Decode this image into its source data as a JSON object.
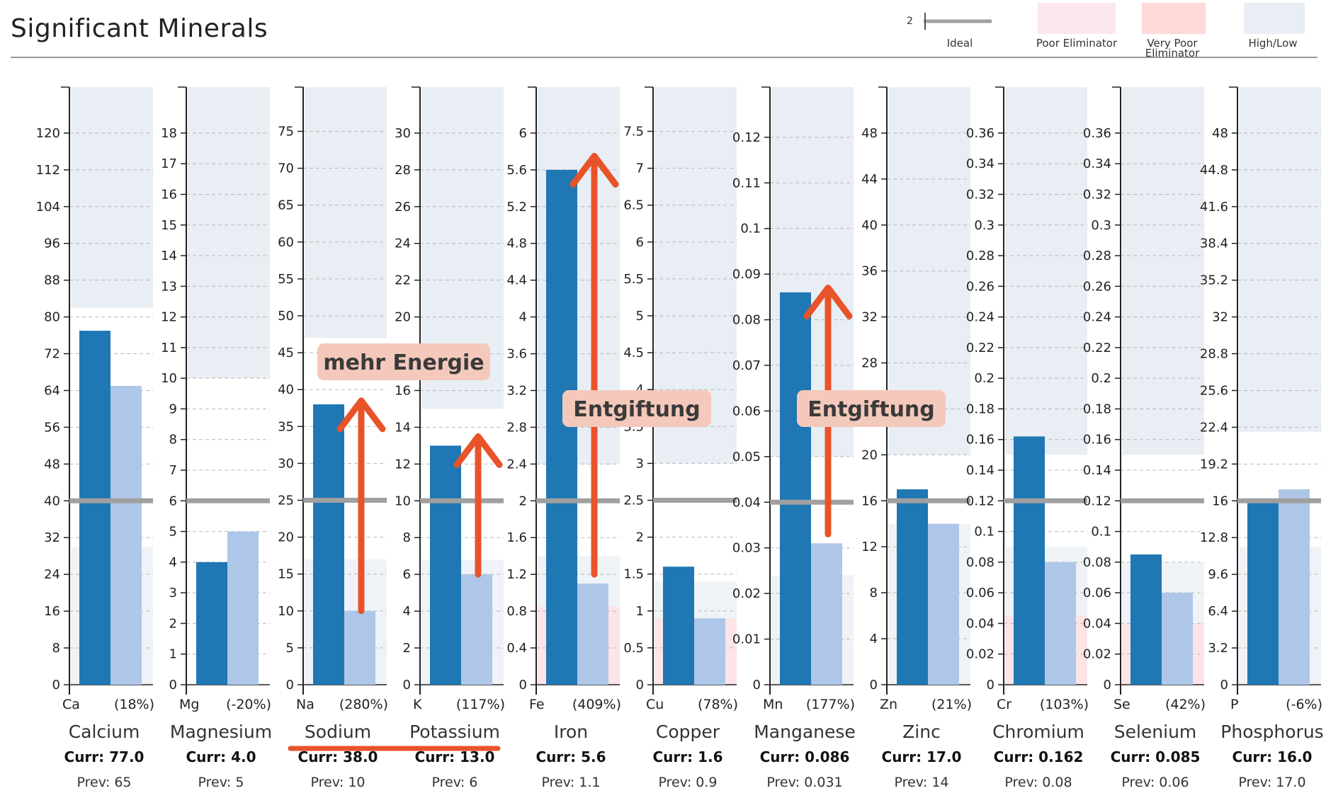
{
  "header": {
    "title": "Significant Minerals"
  },
  "legend": {
    "ideal": {
      "label": "Ideal",
      "value_label": "2"
    },
    "poor": {
      "label": "Poor Eliminator",
      "color": "#fce8ec"
    },
    "very_poor": {
      "label": "Very Poor Eliminator",
      "color": "#fdd9d9"
    },
    "high_low": {
      "label": "High/Low",
      "color": "#e8eef4"
    }
  },
  "colors": {
    "current": "#1f77b4",
    "previous": "#aec7e8",
    "ideal_line": "#a0a0a0",
    "high_low": "#e8eef4",
    "poor": "#fde4e6",
    "arrow": "#e8532a"
  },
  "chart_data": {
    "type": "bar",
    "title": "Significant Minerals",
    "series_names": [
      "Current",
      "Previous"
    ],
    "panels": [
      {
        "symbol": "Ca",
        "name": "Calcium",
        "pct": "(18%)",
        "curr": 77.0,
        "prev": 65,
        "curr_label": "Curr: 77.0",
        "prev_label": "Prev: 65",
        "ideal": 40,
        "ymax": 130,
        "ticks": [
          0,
          8,
          16,
          24,
          32,
          40,
          48,
          56,
          64,
          72,
          80,
          88,
          96,
          104,
          112,
          120
        ],
        "tick_labels": [
          "0",
          "8",
          "16",
          "24",
          "32",
          "40",
          "48",
          "56",
          "64",
          "72",
          "80",
          "88",
          "96",
          "104",
          "112",
          "120"
        ],
        "high_band": 82,
        "low_band": 30,
        "poor_band": null
      },
      {
        "symbol": "Mg",
        "name": "Magnesium",
        "pct": "(-20%)",
        "curr": 4.0,
        "prev": 5,
        "curr_label": "Curr: 4.0",
        "prev_label": "Prev: 5",
        "ideal": 6,
        "ymax": 19.5,
        "ticks": [
          0,
          1,
          2,
          3,
          4,
          5,
          6,
          7,
          8,
          9,
          10,
          11,
          12,
          13,
          14,
          15,
          16,
          17,
          18
        ],
        "tick_labels": [
          "0",
          "1",
          "2",
          "3",
          "4",
          "5",
          "6",
          "7",
          "8",
          "9",
          "10",
          "11",
          "12",
          "13",
          "14",
          "15",
          "16",
          "17",
          "18"
        ],
        "high_band": 10,
        "low_band": null,
        "poor_band": null
      },
      {
        "symbol": "Na",
        "name": "Sodium",
        "pct": "(280%)",
        "curr": 38.0,
        "prev": 10,
        "curr_label": "Curr: 38.0",
        "prev_label": "Prev: 10",
        "ideal": 25,
        "ymax": 81,
        "ticks": [
          0,
          5,
          10,
          15,
          20,
          25,
          30,
          35,
          40,
          45,
          50,
          55,
          60,
          65,
          70,
          75
        ],
        "tick_labels": [
          "0",
          "5",
          "10",
          "15",
          "20",
          "25",
          "30",
          "35",
          "40",
          "45",
          "50",
          "55",
          "60",
          "65",
          "70",
          "75"
        ],
        "high_band": 47,
        "low_band": 17,
        "poor_band": null
      },
      {
        "symbol": "K",
        "name": "Potassium",
        "pct": "(117%)",
        "curr": 13.0,
        "prev": 6,
        "curr_label": "Curr: 13.0",
        "prev_label": "Prev: 6",
        "ideal": 10,
        "ymax": 32.5,
        "ticks": [
          0,
          2,
          4,
          6,
          8,
          10,
          12,
          14,
          16,
          18,
          20,
          22,
          24,
          26,
          28,
          30
        ],
        "tick_labels": [
          "0",
          "2",
          "4",
          "6",
          "8",
          "10",
          "12",
          "14",
          "16",
          "18",
          "20",
          "22",
          "24",
          "26",
          "28",
          "30"
        ],
        "high_band": 15,
        "low_band": 6.8,
        "poor_band": null
      },
      {
        "symbol": "Fe",
        "name": "Iron",
        "pct": "(409%)",
        "curr": 5.6,
        "prev": 1.1,
        "curr_label": "Curr: 5.6",
        "prev_label": "Prev: 1.1",
        "ideal": 2,
        "ymax": 6.5,
        "ticks": [
          0,
          0.4,
          0.8,
          1.2,
          1.6,
          2,
          2.4,
          2.8,
          3.2,
          3.6,
          4,
          4.4,
          4.8,
          5.2,
          5.6,
          6
        ],
        "tick_labels": [
          "0",
          "0.4",
          "0.8",
          "1.2",
          "1.6",
          "2",
          "2.4",
          "2.8",
          "3.2",
          "3.6",
          "4",
          "4.4",
          "4.8",
          "5.2",
          "5.6",
          "6"
        ],
        "high_band": 2.4,
        "low_band": 1.4,
        "poor_band": 0.85
      },
      {
        "symbol": "Cu",
        "name": "Copper",
        "pct": "(78%)",
        "curr": 1.6,
        "prev": 0.9,
        "curr_label": "Curr: 1.6",
        "prev_label": "Prev: 0.9",
        "ideal": 2.5,
        "ymax": 8.1,
        "ticks": [
          0,
          0.5,
          1,
          1.5,
          2,
          2.5,
          3,
          3.5,
          4,
          4.5,
          5,
          5.5,
          6,
          6.5,
          7,
          7.5
        ],
        "tick_labels": [
          "0",
          "0.5",
          "1",
          "1.5",
          "2",
          "2.5",
          "3",
          "3.5",
          "4",
          "4.5",
          "5",
          "5.5",
          "6",
          "6.5",
          "7",
          "7.5"
        ],
        "high_band": 3.0,
        "low_band": 1.4,
        "poor_band": 0.9
      },
      {
        "symbol": "Mn",
        "name": "Manganese",
        "pct": "(177%)",
        "curr": 0.086,
        "prev": 0.031,
        "curr_label": "Curr: 0.086",
        "prev_label": "Prev: 0.031",
        "ideal": 0.04,
        "ymax": 0.131,
        "ticks": [
          0,
          0.01,
          0.02,
          0.03,
          0.04,
          0.05,
          0.06,
          0.07,
          0.08,
          0.09,
          0.1,
          0.11,
          0.12
        ],
        "tick_labels": [
          "0",
          "0.01",
          "0.02",
          "0.03",
          "0.04",
          "0.05",
          "0.06",
          "0.07",
          "0.08",
          "0.09",
          "0.1",
          "0.11",
          "0.12"
        ],
        "high_band": 0.05,
        "low_band": 0.024,
        "poor_band": null
      },
      {
        "symbol": "Zn",
        "name": "Zinc",
        "pct": "(21%)",
        "curr": 17.0,
        "prev": 14,
        "curr_label": "Curr: 17.0",
        "prev_label": "Prev: 14",
        "ideal": 16,
        "ymax": 52,
        "ticks": [
          0,
          4,
          8,
          12,
          16,
          20,
          24,
          28,
          32,
          36,
          40,
          44,
          48
        ],
        "tick_labels": [
          "0",
          "4",
          "8",
          "12",
          "16",
          "20",
          "24",
          "28",
          "32",
          "36",
          "40",
          "44",
          "48"
        ],
        "high_band": 20,
        "low_band": 14,
        "poor_band": null
      },
      {
        "symbol": "Cr",
        "name": "Chromium",
        "pct": "(103%)",
        "curr": 0.162,
        "prev": 0.08,
        "curr_label": "Curr: 0.162",
        "prev_label": "Prev: 0.08",
        "ideal": 0.12,
        "ymax": 0.39,
        "ticks": [
          0,
          0.02,
          0.04,
          0.06,
          0.08,
          0.1,
          0.12,
          0.14,
          0.16,
          0.18,
          0.2,
          0.22,
          0.24,
          0.26,
          0.28,
          0.3,
          0.32,
          0.34,
          0.36
        ],
        "tick_labels": [
          "0",
          "0.02",
          "0.04",
          "0.06",
          "0.08",
          "0.1",
          "0.12",
          "0.14",
          "0.16",
          "0.18",
          "0.2",
          "0.22",
          "0.24",
          "0.26",
          "0.28",
          "0.3",
          "0.32",
          "0.34",
          "0.36"
        ],
        "high_band": 0.15,
        "low_band": 0.09,
        "poor_band": 0.045
      },
      {
        "symbol": "Se",
        "name": "Selenium",
        "pct": "(42%)",
        "curr": 0.085,
        "prev": 0.06,
        "curr_label": "Curr: 0.085",
        "prev_label": "Prev: 0.06",
        "ideal": 0.12,
        "ymax": 0.39,
        "ticks": [
          0,
          0.02,
          0.04,
          0.06,
          0.08,
          0.1,
          0.12,
          0.14,
          0.16,
          0.18,
          0.2,
          0.22,
          0.24,
          0.26,
          0.28,
          0.3,
          0.32,
          0.34,
          0.36
        ],
        "tick_labels": [
          "0",
          "0.02",
          "0.04",
          "0.06",
          "0.08",
          "0.1",
          "0.12",
          "0.14",
          "0.16",
          "0.18",
          "0.2",
          "0.22",
          "0.24",
          "0.26",
          "0.28",
          "0.3",
          "0.32",
          "0.34",
          "0.36"
        ],
        "high_band": 0.15,
        "low_band": 0.08,
        "poor_band": 0.04
      },
      {
        "symbol": "P",
        "name": "Phosphorus",
        "pct": "(-6%)",
        "curr": 16.0,
        "prev": 17.0,
        "curr_label": "Curr: 16.0",
        "prev_label": "Prev: 17.0",
        "ideal": 16,
        "ymax": 52,
        "ticks": [
          0,
          3.2,
          6.4,
          9.6,
          12.8,
          16,
          19.2,
          22.4,
          25.6,
          28.8,
          32,
          35.2,
          38.4,
          41.6,
          44.8,
          48
        ],
        "tick_labels": [
          "0",
          "3.2",
          "6.4",
          "9.6",
          "12.8",
          "16",
          "19.2",
          "22.4",
          "25.6",
          "28.8",
          "32",
          "35.2",
          "38.4",
          "41.6",
          "44.8",
          "48"
        ],
        "high_band": 22,
        "low_band": 12,
        "poor_band": null
      }
    ],
    "annotations": [
      {
        "text": "mehr Energie",
        "panel": 2
      },
      {
        "text": "Entgiftung",
        "panel": 4
      },
      {
        "text": "Entgiftung",
        "panel": 6
      }
    ],
    "arrows": [
      {
        "panel": 2,
        "from": 10,
        "to": 38.5
      },
      {
        "panel": 3,
        "from": 6,
        "to": 13.5
      },
      {
        "panel": 4,
        "from": 1.2,
        "to": 5.75
      },
      {
        "panel": 6,
        "from": 0.033,
        "to": 0.087
      }
    ],
    "underline_panels": [
      2,
      3
    ]
  }
}
